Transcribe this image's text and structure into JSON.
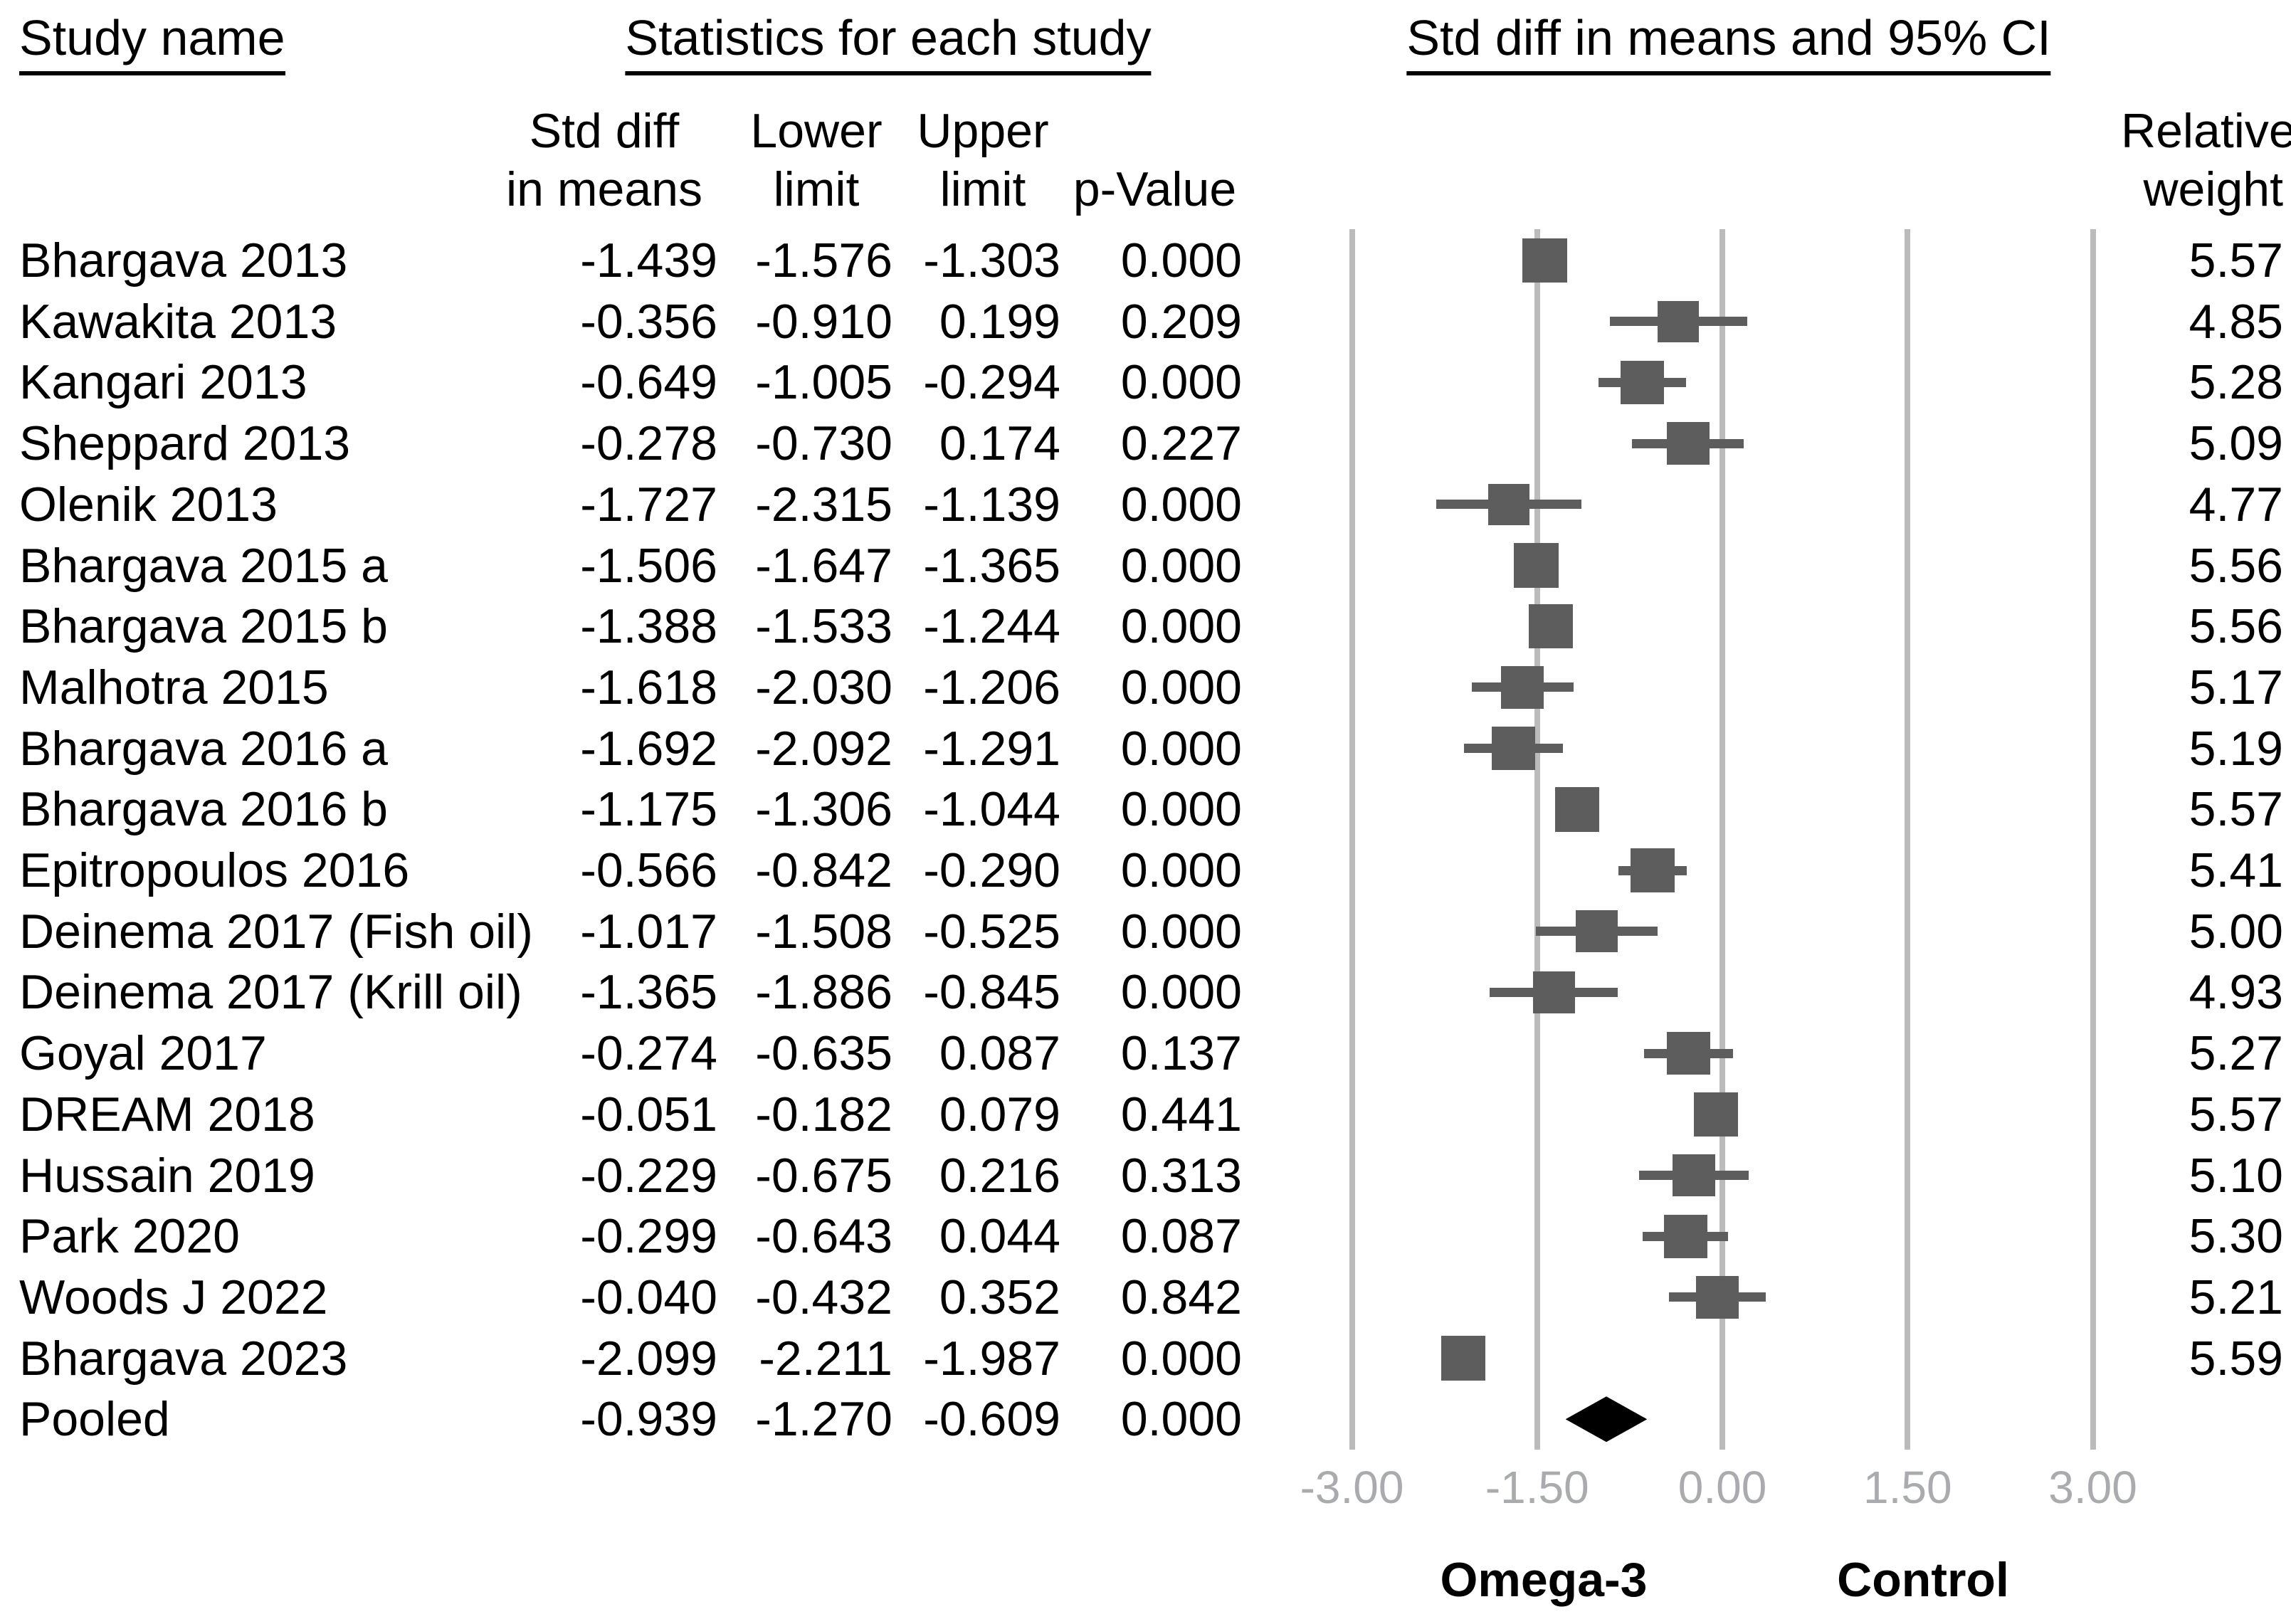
{
  "header": {
    "study_col": "Study name",
    "stats_col": "Statistics for each study",
    "plot_col": "Std diff in means and 95% CI",
    "sub_std_diff_line1": "Std diff",
    "sub_std_diff_line2": "in means",
    "sub_lower_line1": "Lower",
    "sub_lower_line2": "limit",
    "sub_upper_line1": "Upper",
    "sub_upper_line2": "limit",
    "sub_p_value": "p-Value",
    "sub_weight_line1": "Relative",
    "sub_weight_line2": "weight"
  },
  "axis": {
    "tick_labels": [
      "-3.00",
      "-1.50",
      "0.00",
      "1.50",
      "3.00"
    ],
    "tick_values": [
      -3,
      -1.5,
      0,
      1.5,
      3
    ],
    "left_group_label": "Omega-3",
    "right_group_label": "Control"
  },
  "colors": {
    "square": "#5d5d5d",
    "whisker": "#5d5d5d",
    "diamond": "#000000",
    "gridline": "#bbbbbb",
    "axis_text": "#a9abae",
    "text": "#000000"
  },
  "chart_data": {
    "type": "forest",
    "title": "Std diff in means and 95% CI",
    "xlim": [
      -3,
      3
    ],
    "x_ticks": [
      -3,
      -1.5,
      0,
      1.5,
      3
    ],
    "x_tick_labels": [
      "-3.00",
      "-1.50",
      "0.00",
      "1.50",
      "3.00"
    ],
    "grid": "vertical-gridlines-on",
    "studies": [
      {
        "name": "Bhargava 2013",
        "std_diff": "-1.439",
        "lower": "-1.576",
        "upper": "-1.303",
        "p_value": "0.000",
        "weight": "5.57"
      },
      {
        "name": "Kawakita 2013",
        "std_diff": "-0.356",
        "lower": "-0.910",
        "upper": "0.199",
        "p_value": "0.209",
        "weight": "4.85"
      },
      {
        "name": "Kangari 2013",
        "std_diff": "-0.649",
        "lower": "-1.005",
        "upper": "-0.294",
        "p_value": "0.000",
        "weight": "5.28"
      },
      {
        "name": "Sheppard 2013",
        "std_diff": "-0.278",
        "lower": "-0.730",
        "upper": "0.174",
        "p_value": "0.227",
        "weight": "5.09"
      },
      {
        "name": "Olenik 2013",
        "std_diff": "-1.727",
        "lower": "-2.315",
        "upper": "-1.139",
        "p_value": "0.000",
        "weight": "4.77"
      },
      {
        "name": "Bhargava 2015 a",
        "std_diff": "-1.506",
        "lower": "-1.647",
        "upper": "-1.365",
        "p_value": "0.000",
        "weight": "5.56"
      },
      {
        "name": "Bhargava 2015 b",
        "std_diff": "-1.388",
        "lower": "-1.533",
        "upper": "-1.244",
        "p_value": "0.000",
        "weight": "5.56"
      },
      {
        "name": "Malhotra 2015",
        "std_diff": "-1.618",
        "lower": "-2.030",
        "upper": "-1.206",
        "p_value": "0.000",
        "weight": "5.17"
      },
      {
        "name": "Bhargava 2016 a",
        "std_diff": "-1.692",
        "lower": "-2.092",
        "upper": "-1.291",
        "p_value": "0.000",
        "weight": "5.19"
      },
      {
        "name": "Bhargava 2016 b",
        "std_diff": "-1.175",
        "lower": "-1.306",
        "upper": "-1.044",
        "p_value": "0.000",
        "weight": "5.57"
      },
      {
        "name": "Epitropoulos 2016",
        "std_diff": "-0.566",
        "lower": "-0.842",
        "upper": "-0.290",
        "p_value": "0.000",
        "weight": "5.41"
      },
      {
        "name": "Deinema 2017 (Fish oil)",
        "std_diff": "-1.017",
        "lower": "-1.508",
        "upper": "-0.525",
        "p_value": "0.000",
        "weight": "5.00"
      },
      {
        "name": "Deinema 2017 (Krill oil)",
        "std_diff": "-1.365",
        "lower": "-1.886",
        "upper": "-0.845",
        "p_value": "0.000",
        "weight": "4.93"
      },
      {
        "name": "Goyal 2017",
        "std_diff": "-0.274",
        "lower": "-0.635",
        "upper": "0.087",
        "p_value": "0.137",
        "weight": "5.27"
      },
      {
        "name": "DREAM 2018",
        "std_diff": "-0.051",
        "lower": "-0.182",
        "upper": "0.079",
        "p_value": "0.441",
        "weight": "5.57"
      },
      {
        "name": "Hussain 2019",
        "std_diff": "-0.229",
        "lower": "-0.675",
        "upper": "0.216",
        "p_value": "0.313",
        "weight": "5.10"
      },
      {
        "name": "Park 2020",
        "std_diff": "-0.299",
        "lower": "-0.643",
        "upper": "0.044",
        "p_value": "0.087",
        "weight": "5.30"
      },
      {
        "name": "Woods J 2022",
        "std_diff": "-0.040",
        "lower": "-0.432",
        "upper": "0.352",
        "p_value": "0.842",
        "weight": "5.21"
      },
      {
        "name": "Bhargava 2023",
        "std_diff": "-2.099",
        "lower": "-2.211",
        "upper": "-1.987",
        "p_value": "0.000",
        "weight": "5.59"
      }
    ],
    "pooled": {
      "name": "Pooled",
      "std_diff": "-0.939",
      "lower": "-1.270",
      "upper": "-0.609",
      "p_value": "0.000",
      "weight": ""
    }
  }
}
